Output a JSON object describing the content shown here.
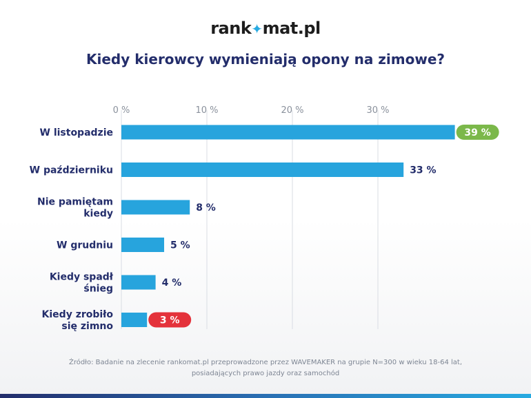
{
  "brand": {
    "logo_before": "rank",
    "logo_star": "✦",
    "logo_after": "mat.pl"
  },
  "colors": {
    "bar": "#27a4dd",
    "title": "#232d6b",
    "label": "#232d6b",
    "highlight_max": "#7bb84a",
    "highlight_min": "#e4323b",
    "gridline": "#d9dde3",
    "axis_tick": "#8a919c"
  },
  "chart_data": {
    "type": "bar",
    "orientation": "horizontal",
    "title": "Kiedy kierowcy wymieniają opony na zimowe?",
    "categories": [
      [
        "W listopadzie"
      ],
      [
        "W październiku"
      ],
      [
        "Nie pamiętam",
        "kiedy"
      ],
      [
        "W grudniu"
      ],
      [
        "Kiedy spadł",
        "śnieg"
      ],
      [
        "Kiedy zrobiło",
        "się zimno"
      ]
    ],
    "values": [
      39,
      33,
      8,
      5,
      4,
      3
    ],
    "data_labels": [
      "39 %",
      "33 %",
      "8 %",
      "5 %",
      "4 %",
      "3 %"
    ],
    "highlight": [
      "max",
      "none",
      "none",
      "none",
      "none",
      "min"
    ],
    "xlim": [
      0,
      40
    ],
    "x_ticks": [
      0,
      10,
      20,
      30
    ],
    "x_tick_labels": [
      "0 %",
      "10 %",
      "20 %",
      "30 %"
    ],
    "axis_position": "top",
    "grid": true,
    "legend": "none"
  },
  "footer": {
    "source_line1": "Źródło: Badanie na zlecenie rankomat.pl przeprowadzone przez WAVEMAKER na grupie N=300 w wieku 18-64 lat,",
    "source_line2": "posiadających prawo jazdy oraz samochód"
  }
}
